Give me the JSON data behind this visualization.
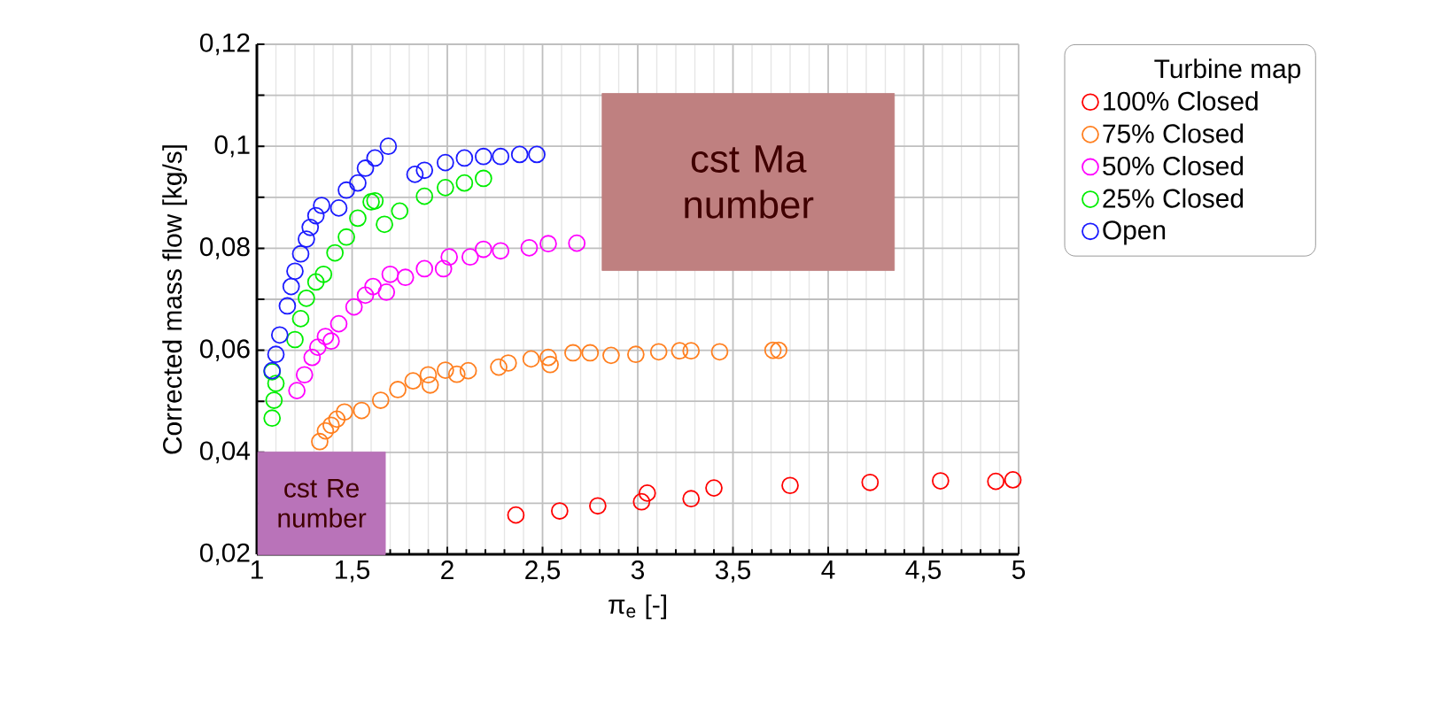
{
  "chart_data": {
    "type": "scatter",
    "xlabel": "π$_{e}$ [-]",
    "ylabel": "Corrected mass flow [kg/s]",
    "legend_title": "Turbine map",
    "marker": "circle",
    "grid": true,
    "legend": "right",
    "xlim": [
      1,
      5
    ],
    "ylim": [
      0.02,
      0.12
    ],
    "xticks": [
      1,
      {
        "value": 1.5,
        "label": "1,5"
      },
      2,
      {
        "value": 2.5,
        "label": "2,5"
      },
      3,
      {
        "value": 3.5,
        "label": "3,5"
      },
      4,
      {
        "value": 4.5,
        "label": "4,5"
      },
      5
    ],
    "yticks": [
      {
        "value": 0.02,
        "label": "0,02"
      },
      {
        "value": 0.03,
        "label": null
      },
      {
        "value": 0.04,
        "label": "0,04"
      },
      {
        "value": 0.05,
        "label": null
      },
      {
        "value": 0.06,
        "label": "0,06"
      },
      {
        "value": 0.07,
        "label": null
      },
      {
        "value": 0.08,
        "label": "0,08"
      },
      {
        "value": 0.09,
        "label": null
      },
      {
        "value": 0.1,
        "label": "0,1"
      },
      {
        "value": 0.11,
        "label": null
      },
      {
        "value": 0.12,
        "label": "0,12"
      }
    ],
    "annotations": [
      "cst Ma number",
      "cst Re number"
    ],
    "series": [
      {
        "name": "100% Closed",
        "color": "#ff0000",
        "x": [
          2.36,
          2.59,
          2.79,
          3.02,
          3.05,
          3.28,
          3.4,
          3.8,
          4.22,
          4.59,
          4.88,
          4.97
        ],
        "values": [
          0.0277,
          0.0285,
          0.0295,
          0.0303,
          0.032,
          0.0309,
          0.033,
          0.0335,
          0.0341,
          0.0344,
          0.0343,
          0.0346
        ]
      },
      {
        "name": "75% Closed",
        "color": "#ff7f1f",
        "x": [
          1.33,
          1.36,
          1.39,
          1.42,
          1.46,
          1.55,
          1.65,
          1.74,
          1.82,
          1.9,
          1.91,
          1.99,
          2.05,
          2.11,
          2.27,
          2.32,
          2.44,
          2.53,
          2.54,
          2.66,
          2.75,
          2.86,
          2.99,
          3.11,
          3.22,
          3.28,
          3.43,
          3.71,
          3.74
        ],
        "values": [
          0.0421,
          0.0442,
          0.0453,
          0.0465,
          0.0479,
          0.0482,
          0.0502,
          0.0523,
          0.054,
          0.0552,
          0.0532,
          0.0561,
          0.0553,
          0.056,
          0.0567,
          0.0575,
          0.0583,
          0.0586,
          0.0572,
          0.0595,
          0.0595,
          0.059,
          0.0592,
          0.0597,
          0.0599,
          0.0599,
          0.0597,
          0.06,
          0.06
        ]
      },
      {
        "name": "50% Closed",
        "color": "#ff00ff",
        "x": [
          1.21,
          1.25,
          1.29,
          1.32,
          1.36,
          1.39,
          1.43,
          1.51,
          1.57,
          1.61,
          1.68,
          1.7,
          1.78,
          1.88,
          1.98,
          2.01,
          2.12,
          2.19,
          2.28,
          2.43,
          2.53,
          2.68
        ],
        "values": [
          0.0521,
          0.0552,
          0.0586,
          0.0606,
          0.0627,
          0.0618,
          0.0652,
          0.0685,
          0.0708,
          0.0725,
          0.0714,
          0.0749,
          0.0743,
          0.076,
          0.076,
          0.0783,
          0.0783,
          0.0798,
          0.0795,
          0.0801,
          0.0809,
          0.081
        ]
      },
      {
        "name": "25% Closed",
        "color": "#00ee00",
        "x": [
          1.08,
          1.09,
          1.1,
          1.08,
          1.2,
          1.23,
          1.26,
          1.31,
          1.35,
          1.41,
          1.47,
          1.53,
          1.6,
          1.62,
          1.67,
          1.75,
          1.88,
          1.99,
          2.09,
          2.19
        ],
        "values": [
          0.0467,
          0.0502,
          0.0535,
          0.0558,
          0.0621,
          0.0662,
          0.0702,
          0.0734,
          0.0749,
          0.0791,
          0.0822,
          0.0859,
          0.0891,
          0.0893,
          0.0847,
          0.0873,
          0.0902,
          0.0919,
          0.0928,
          0.0937
        ]
      },
      {
        "name": "Open",
        "color": "#1a1aff",
        "x": [
          1.08,
          1.1,
          1.12,
          1.16,
          1.18,
          1.2,
          1.23,
          1.26,
          1.28,
          1.31,
          1.34,
          1.43,
          1.47,
          1.53,
          1.57,
          1.62,
          1.69,
          1.83,
          1.88,
          1.99,
          2.09,
          2.19,
          2.28,
          2.38,
          2.47
        ],
        "values": [
          0.056,
          0.0592,
          0.063,
          0.0687,
          0.0725,
          0.0755,
          0.0789,
          0.0818,
          0.0841,
          0.0864,
          0.0884,
          0.0879,
          0.0914,
          0.0928,
          0.0957,
          0.0977,
          0.1,
          0.0945,
          0.0953,
          0.0968,
          0.0977,
          0.098,
          0.098,
          0.0984,
          0.0984
        ]
      }
    ]
  }
}
